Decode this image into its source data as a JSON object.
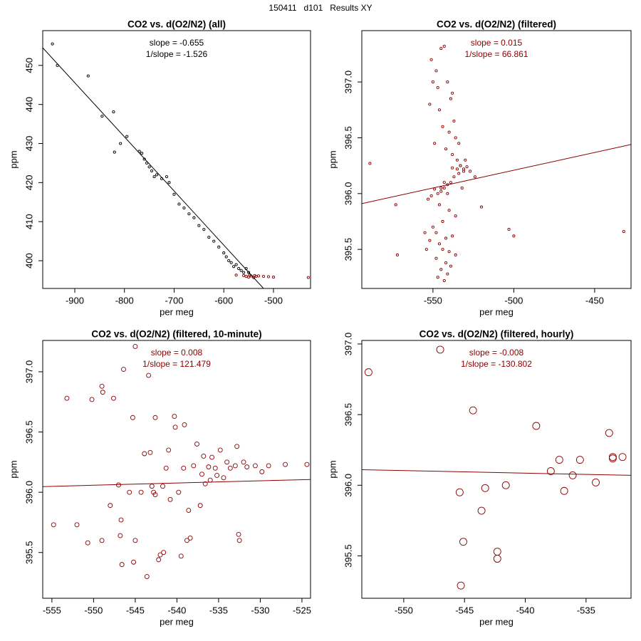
{
  "title": "150411   d101   Results XY",
  "chart_data": [
    {
      "type": "scatter",
      "title": "CO2 vs. d(O2/N2) (all)",
      "xlabel": "per meg",
      "ylabel": "ppm",
      "xlim": [
        -964.5,
        -425.4
      ],
      "ylim": [
        392.9,
        458.9
      ],
      "xticks": [
        -900,
        -800,
        -700,
        -600,
        -500
      ],
      "yticks": [
        400,
        410,
        420,
        430,
        440,
        450
      ],
      "annotations": {
        "color": "#000000",
        "texts": [
          "slope = -0.655",
          "1/slope = -1.526"
        ]
      },
      "fit": {
        "color": "#000000",
        "x": [
          -964.5,
          -520
        ],
        "y": [
          454.5,
          392.9
        ]
      },
      "series": [
        {
          "color": "#000000",
          "x": [
            -945,
            -935,
            -873,
            -845,
            -822,
            -820,
            -808,
            -795,
            -770,
            -765,
            -760,
            -755,
            -750,
            -745,
            -740,
            -735,
            -725,
            -715,
            -710,
            -700,
            -690,
            -680,
            -670,
            -660,
            -650,
            -640,
            -630,
            -620,
            -610,
            -600,
            -595,
            -590,
            -585,
            -580,
            -575,
            -570,
            -565,
            -560,
            -555,
            -550
          ],
          "y": [
            455.5,
            450,
            447.3,
            437,
            438.1,
            427.8,
            430,
            431.8,
            428,
            427.5,
            426,
            425,
            424,
            423,
            421.5,
            422,
            421,
            421.5,
            420,
            417,
            414.5,
            413.5,
            412,
            411,
            409,
            408,
            406,
            405,
            403.5,
            402,
            401,
            400,
            399.5,
            398.5,
            399,
            398,
            397.5,
            397,
            398,
            397
          ]
        },
        {
          "color": "#8b0000",
          "x": [
            -575,
            -560,
            -555,
            -550,
            -548,
            -545,
            -540,
            -538,
            -535,
            -530,
            -520,
            -510,
            -500,
            -430
          ],
          "y": [
            396.3,
            396.2,
            396,
            395.8,
            396.3,
            396.1,
            395.7,
            396.2,
            396,
            396.1,
            396,
            395.9,
            395.8,
            395.7
          ]
        }
      ]
    },
    {
      "type": "scatter",
      "title": "CO2 vs. d(O2/N2) (filtered)",
      "xlabel": "per meg",
      "ylabel": "ppm",
      "xlim": [
        -594,
        -427.5
      ],
      "ylim": [
        395.15,
        397.46
      ],
      "xticks": [
        -550,
        -500,
        -450
      ],
      "yticks": [
        395.5,
        {
          "value": 396,
          "label": "396.0"
        },
        396.5,
        {
          "value": 397,
          "label": "397.0"
        }
      ],
      "annotations": {
        "color": "#8b0000",
        "texts": [
          "slope = 0.015",
          "1/slope = 66.861"
        ]
      },
      "fit": {
        "color": "#8b0000",
        "x": [
          -594,
          -427.5
        ],
        "y": [
          395.91,
          396.44
        ]
      },
      "series": [
        {
          "color": "#8b0000",
          "x": [
            -589,
            -573,
            -572,
            -503,
            -500,
            -432,
            -520,
            -524,
            -551,
            -548,
            -545,
            -543,
            -550,
            -547,
            -541,
            -538,
            -552,
            -546,
            -544,
            -540,
            -536,
            -549,
            -542,
            -538,
            -535,
            -533,
            -531,
            -529,
            -527,
            -534,
            -537,
            -539,
            -541,
            -543,
            -545,
            -547,
            -549,
            -551,
            -553,
            -546,
            -540,
            -536,
            -544,
            -550,
            -548,
            -542,
            -538,
            -552,
            -546,
            -544,
            -540,
            -536,
            -548,
            -542,
            -545,
            -541,
            -547,
            -543,
            -539,
            -554,
            -555,
            -532,
            -530,
            -534,
            -537,
            -539,
            -533,
            -535,
            -531,
            -538,
            -545,
            -543,
            -541
          ],
          "y": [
            396.27,
            395.9,
            395.45,
            395.68,
            395.62,
            395.66,
            395.88,
            396.15,
            397.2,
            397.1,
            397.3,
            397.32,
            397.0,
            396.95,
            397.0,
            396.9,
            396.8,
            396.75,
            396.6,
            396.55,
            396.5,
            396.45,
            396.4,
            396.35,
            396.3,
            396.25,
            396.22,
            396.24,
            396.2,
            396.18,
            396.15,
            396.1,
            396.08,
            396.05,
            396.02,
            396.0,
            396.04,
            395.98,
            395.95,
            395.9,
            395.85,
            395.8,
            395.75,
            395.7,
            395.65,
            395.6,
            395.62,
            395.58,
            395.55,
            395.5,
            395.48,
            395.45,
            395.42,
            395.38,
            395.32,
            395.28,
            395.25,
            395.22,
            395.35,
            395.5,
            395.65,
            396.05,
            396.3,
            396.45,
            396.65,
            396.85,
            396.25,
            396.22,
            396.2,
            396.23,
            396.05,
            396.1,
            396.0
          ]
        }
      ]
    },
    {
      "type": "scatter",
      "title": "CO2 vs. d(O2/N2) (filtered, 10-minute)",
      "xlabel": "per meg",
      "ylabel": "ppm",
      "xlim": [
        -556.1,
        -523.97
      ],
      "ylim": [
        395.12,
        397.26
      ],
      "xticks": [
        -555,
        -550,
        -545,
        -540,
        -535,
        -530,
        -525
      ],
      "yticks": [
        395.5,
        {
          "value": 396,
          "label": "396.0"
        },
        396.5,
        {
          "value": 397,
          "label": "397.0"
        }
      ],
      "annotations": {
        "color": "#8b0000",
        "texts": [
          "slope = 0.008",
          "1/slope = 121.479"
        ]
      },
      "fit": {
        "color": "#8b0000",
        "x": [
          -556.1,
          -523.97
        ],
        "y": [
          396.047,
          396.106
        ]
      },
      "series": [
        {
          "color": "#8b0000",
          "x": [
            -554.8,
            -553.2,
            -552.0,
            -550.7,
            -550.2,
            -549.0,
            -548.9,
            -549.0,
            -548.0,
            -547.6,
            -547.0,
            -546.7,
            -546.8,
            -546.6,
            -546.4,
            -545.7,
            -545.3,
            -545.2,
            -545.0,
            -545.0,
            -544.3,
            -543.9,
            -543.6,
            -543.4,
            -543.2,
            -543.0,
            -542.8,
            -542.6,
            -542.6,
            -542.2,
            -542.0,
            -541.7,
            -541.6,
            -541.3,
            -541.0,
            -540.8,
            -540.3,
            -540.2,
            -539.8,
            -539.5,
            -539.2,
            -539.1,
            -538.8,
            -538.6,
            -538.4,
            -538.0,
            -537.6,
            -537.2,
            -537.0,
            -536.8,
            -536.6,
            -536.2,
            -536.0,
            -535.8,
            -535.4,
            -535.2,
            -534.8,
            -534.4,
            -534.0,
            -533.6,
            -533.0,
            -532.8,
            -532.6,
            -532.5,
            -532.0,
            -531.6,
            -530.6,
            -529.8,
            -529.0,
            -527.0,
            -524.4
          ],
          "y": [
            395.73,
            396.78,
            395.73,
            395.58,
            396.77,
            396.88,
            396.83,
            395.6,
            395.89,
            396.78,
            396.06,
            395.77,
            395.64,
            395.4,
            397.02,
            396.0,
            396.62,
            395.42,
            397.21,
            395.6,
            396.0,
            396.32,
            395.3,
            396.97,
            396.33,
            396.05,
            396.0,
            395.98,
            396.62,
            395.44,
            395.48,
            396.05,
            395.5,
            396.2,
            396.35,
            395.94,
            396.63,
            396.54,
            396.0,
            395.47,
            396.2,
            396.56,
            395.6,
            395.85,
            395.62,
            396.22,
            396.4,
            395.89,
            396.15,
            396.3,
            396.07,
            396.21,
            396.1,
            396.29,
            396.2,
            396.14,
            396.35,
            396.12,
            396.25,
            396.2,
            396.22,
            396.38,
            395.65,
            395.6,
            396.25,
            396.21,
            396.22,
            396.17,
            396.22,
            396.23,
            396.23
          ]
        }
      ]
    },
    {
      "type": "scatter",
      "title": "CO2 vs. d(O2/N2) (filtered, hourly)",
      "xlabel": "per meg",
      "ylabel": "ppm",
      "xlim": [
        -553.45,
        -531.3
      ],
      "ylim": [
        395.2,
        397.025
      ],
      "xticks": [
        -550,
        -545,
        -540,
        -535
      ],
      "yticks": [
        395.5,
        {
          "value": 396,
          "label": "396.0"
        },
        396.5,
        {
          "value": 397,
          "label": "397.0"
        }
      ],
      "annotations": {
        "color": "#8b0000",
        "texts": [
          "slope = -0.008",
          "1/slope = -130.802"
        ]
      },
      "fit": {
        "color": "#8b0000",
        "x": [
          -553.45,
          -531.3
        ],
        "y": [
          396.11,
          396.07
        ]
      },
      "series": [
        {
          "color": "#8b0000",
          "x": [
            -552.9,
            -547.0,
            -544.3,
            -545.4,
            -545.1,
            -545.3,
            -543.3,
            -543.6,
            -542.3,
            -542.3,
            -541.6,
            -539.1,
            -537.9,
            -537.2,
            -536.8,
            -536.1,
            -535.5,
            -534.2,
            -533.1,
            -532.8,
            -532.8,
            -532.0
          ],
          "y": [
            396.8,
            396.96,
            396.53,
            395.95,
            395.6,
            395.29,
            395.98,
            395.82,
            395.53,
            395.48,
            396.0,
            396.42,
            396.1,
            396.18,
            395.96,
            396.07,
            396.18,
            396.02,
            396.37,
            396.2,
            396.19,
            396.2
          ]
        }
      ]
    }
  ]
}
